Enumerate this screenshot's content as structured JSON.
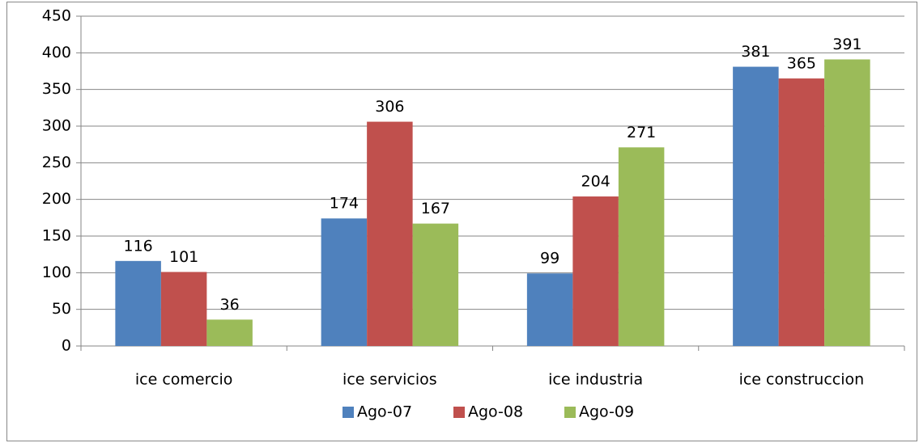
{
  "chart_data": {
    "type": "bar",
    "categories": [
      "ice comercio",
      "ice servicios",
      "ice industria",
      "ice construccion"
    ],
    "series": [
      {
        "name": "Ago-07",
        "color": "#4f81bd",
        "values": [
          116,
          174,
          99,
          381
        ]
      },
      {
        "name": "Ago-08",
        "color": "#c0504d",
        "values": [
          101,
          306,
          204,
          365
        ]
      },
      {
        "name": "Ago-09",
        "color": "#9bbb59",
        "values": [
          36,
          167,
          271,
          391
        ]
      }
    ],
    "ylim": [
      0,
      450
    ],
    "yticks": [
      0,
      50,
      100,
      150,
      200,
      250,
      300,
      350,
      400,
      450
    ],
    "grid": true,
    "legend": "bottom"
  }
}
